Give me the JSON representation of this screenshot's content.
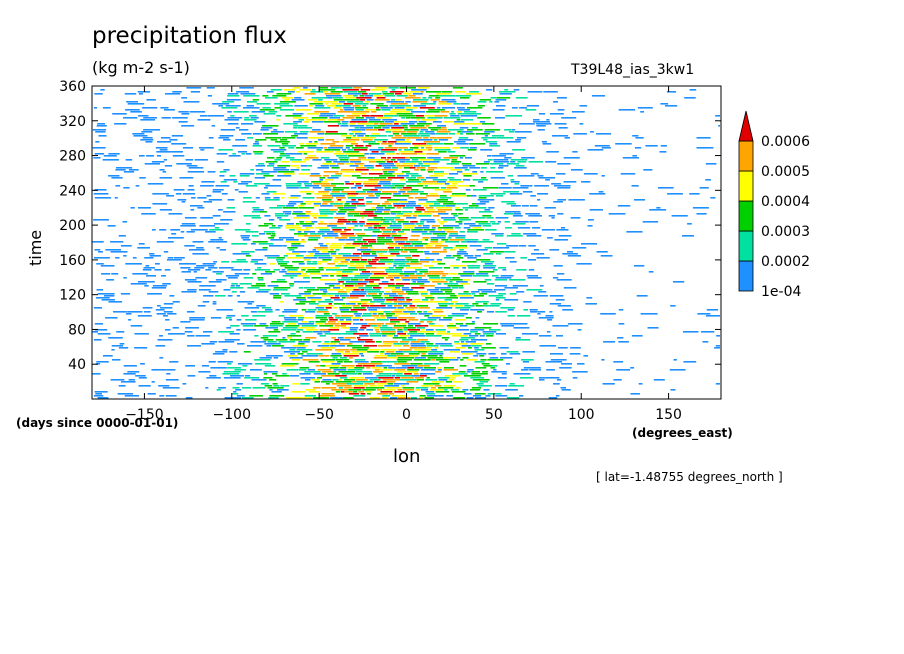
{
  "title": "precipitation flux",
  "units": "(kg m-2 s-1)",
  "experiment": "T39L48_ias_3kw1",
  "slice_label": "[ lat=-1.48755 degrees_north ]",
  "chart_data": {
    "type": "heatmap",
    "xlabel": "lon",
    "x_units": "(degrees_east)",
    "ylabel": "time",
    "y_units": "(days since 0000-01-01)",
    "xlim": [
      -180,
      180
    ],
    "ylim": [
      0,
      360
    ],
    "x_ticks": [
      -150,
      -100,
      -50,
      0,
      50,
      100,
      150
    ],
    "y_ticks": [
      40,
      80,
      120,
      160,
      200,
      240,
      280,
      320,
      360
    ],
    "colorbar": {
      "levels": [
        "1e-04",
        "0.0002",
        "0.0003",
        "0.0004",
        "0.0005",
        "0.0006"
      ],
      "colors": [
        "#1e90ff",
        "#00e0a0",
        "#00d000",
        "#ffff00",
        "#ffa500",
        "#e00000"
      ],
      "extend": "max"
    }
  }
}
